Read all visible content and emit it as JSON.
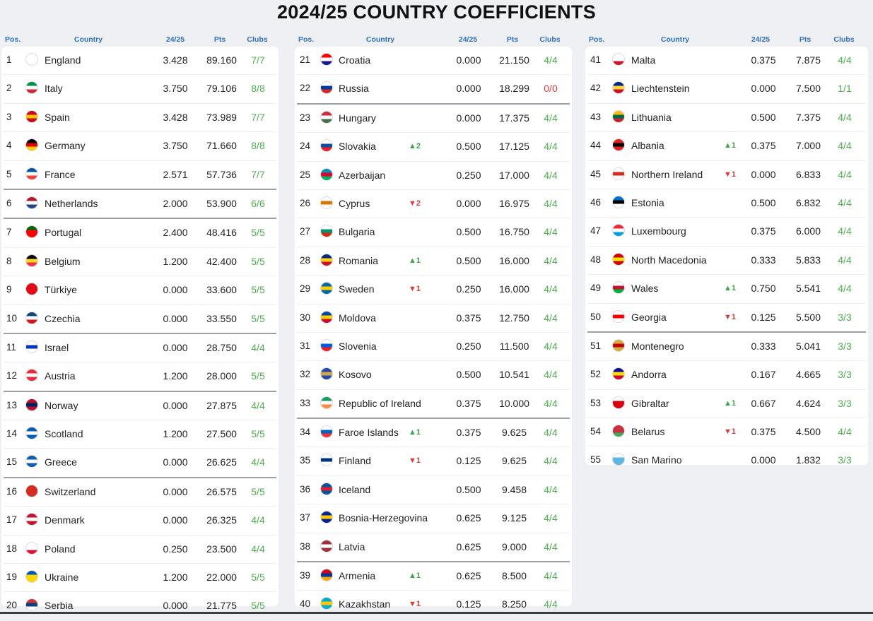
{
  "title": "2024/25 COUNTRY COEFFICIENTS",
  "headers": {
    "pos": "Pos.",
    "country": "Country",
    "season": "24/25",
    "pts": "Pts",
    "clubs": "Clubs"
  },
  "colors": {
    "header_blue": "#2f6fc2",
    "clubs_green": "#4cae4c",
    "clubs_red": "#e03a3a",
    "up_green": "#3aa54a",
    "down_red": "#d63a3a"
  },
  "columns": [
    [
      {
        "pos": "1",
        "country": "England",
        "season": "3.428",
        "pts": "89.160",
        "clubs": "7/7",
        "flag": [
          "#ffffff",
          "#d2232a"
        ],
        "sep": false
      },
      {
        "pos": "2",
        "country": "Italy",
        "season": "3.750",
        "pts": "79.106",
        "clubs": "8/8",
        "flag": [
          "#009246",
          "#ffffff",
          "#ce2b37"
        ],
        "sep": false
      },
      {
        "pos": "3",
        "country": "Spain",
        "season": "3.428",
        "pts": "73.989",
        "clubs": "7/7",
        "flag": [
          "#c60b1e",
          "#ffc400",
          "#c60b1e"
        ],
        "sep": false
      },
      {
        "pos": "4",
        "country": "Germany",
        "season": "3.750",
        "pts": "71.660",
        "clubs": "8/8",
        "flag": [
          "#000000",
          "#dd0000",
          "#ffce00"
        ],
        "sep": false
      },
      {
        "pos": "5",
        "country": "France",
        "season": "2.571",
        "pts": "57.736",
        "clubs": "7/7",
        "flag": [
          "#0055a4",
          "#ffffff",
          "#ef4135"
        ],
        "sep": true
      },
      {
        "pos": "6",
        "country": "Netherlands",
        "season": "2.000",
        "pts": "53.900",
        "clubs": "6/6",
        "flag": [
          "#ae1c28",
          "#ffffff",
          "#21468b"
        ],
        "sep": true
      },
      {
        "pos": "7",
        "country": "Portugal",
        "season": "2.400",
        "pts": "48.416",
        "clubs": "5/5",
        "flag": [
          "#006600",
          "#ff0000",
          "#ff0000"
        ],
        "sep": false
      },
      {
        "pos": "8",
        "country": "Belgium",
        "season": "1.200",
        "pts": "42.400",
        "clubs": "5/5",
        "flag": [
          "#000000",
          "#fdda24",
          "#ef3340"
        ],
        "sep": false
      },
      {
        "pos": "9",
        "country": "Türkiye",
        "season": "0.000",
        "pts": "33.600",
        "clubs": "5/5",
        "flag": [
          "#e30a17",
          "#e30a17",
          "#e30a17"
        ],
        "sep": false
      },
      {
        "pos": "10",
        "country": "Czechia",
        "season": "0.000",
        "pts": "33.550",
        "clubs": "5/5",
        "flag": [
          "#11457e",
          "#ffffff",
          "#d7141a"
        ],
        "sep": true
      },
      {
        "pos": "11",
        "country": "Israel",
        "season": "0.000",
        "pts": "28.750",
        "clubs": "4/4",
        "flag": [
          "#ffffff",
          "#0038b8",
          "#ffffff"
        ],
        "sep": false
      },
      {
        "pos": "12",
        "country": "Austria",
        "season": "1.200",
        "pts": "28.000",
        "clubs": "5/5",
        "flag": [
          "#ed2939",
          "#ffffff",
          "#ed2939"
        ],
        "sep": true
      },
      {
        "pos": "13",
        "country": "Norway",
        "season": "0.000",
        "pts": "27.875",
        "clubs": "4/4",
        "flag": [
          "#ba0c2f",
          "#00205b",
          "#ba0c2f"
        ],
        "sep": false
      },
      {
        "pos": "14",
        "country": "Scotland",
        "season": "1.200",
        "pts": "27.500",
        "clubs": "5/5",
        "flag": [
          "#005eb8",
          "#ffffff",
          "#005eb8"
        ],
        "sep": false
      },
      {
        "pos": "15",
        "country": "Greece",
        "season": "0.000",
        "pts": "26.625",
        "clubs": "4/4",
        "flag": [
          "#0d5eaf",
          "#ffffff",
          "#0d5eaf"
        ],
        "sep": true
      },
      {
        "pos": "16",
        "country": "Switzerland",
        "season": "0.000",
        "pts": "26.575",
        "clubs": "5/5",
        "flag": [
          "#d52b1e",
          "#d52b1e",
          "#d52b1e"
        ],
        "sep": false
      },
      {
        "pos": "17",
        "country": "Denmark",
        "season": "0.000",
        "pts": "26.325",
        "clubs": "4/4",
        "flag": [
          "#c8102e",
          "#ffffff",
          "#c8102e"
        ],
        "sep": false
      },
      {
        "pos": "18",
        "country": "Poland",
        "season": "0.250",
        "pts": "23.500",
        "clubs": "4/4",
        "flag": [
          "#ffffff",
          "#ffffff",
          "#dc143c"
        ],
        "sep": false
      },
      {
        "pos": "19",
        "country": "Ukraine",
        "season": "1.200",
        "pts": "22.000",
        "clubs": "5/5",
        "flag": [
          "#0057b7",
          "#ffd700",
          "#ffd700"
        ],
        "sep": false
      },
      {
        "pos": "20",
        "country": "Serbia",
        "season": "0.000",
        "pts": "21.775",
        "clubs": "5/5",
        "flag": [
          "#c6363c",
          "#0c4076",
          "#ffffff"
        ],
        "sep": false
      }
    ],
    [
      {
        "pos": "21",
        "country": "Croatia",
        "season": "0.000",
        "pts": "21.150",
        "clubs": "4/4",
        "flag": [
          "#ff0000",
          "#ffffff",
          "#171796"
        ],
        "sep": false
      },
      {
        "pos": "22",
        "country": "Russia",
        "season": "0.000",
        "pts": "18.299",
        "clubs": "0/0",
        "flag": [
          "#ffffff",
          "#0039a6",
          "#d52b1e"
        ],
        "sep": true
      },
      {
        "pos": "23",
        "country": "Hungary",
        "season": "0.000",
        "pts": "17.375",
        "clubs": "4/4",
        "flag": [
          "#cd2a3e",
          "#ffffff",
          "#436f4d"
        ],
        "sep": false
      },
      {
        "pos": "24",
        "country": "Slovakia",
        "season": "0.500",
        "pts": "17.125",
        "clubs": "4/4",
        "move": "▲2",
        "dir": "up",
        "flag": [
          "#ffffff",
          "#0b4ea2",
          "#ee1c25"
        ],
        "sep": false
      },
      {
        "pos": "25",
        "country": "Azerbaijan",
        "season": "0.250",
        "pts": "17.000",
        "clubs": "4/4",
        "flag": [
          "#0092bc",
          "#e4002b",
          "#00af66"
        ],
        "sep": false
      },
      {
        "pos": "26",
        "country": "Cyprus",
        "season": "0.000",
        "pts": "16.975",
        "clubs": "4/4",
        "move": "▼2",
        "dir": "down",
        "flag": [
          "#ffffff",
          "#d57800",
          "#ffffff"
        ],
        "sep": false
      },
      {
        "pos": "27",
        "country": "Bulgaria",
        "season": "0.500",
        "pts": "16.750",
        "clubs": "4/4",
        "flag": [
          "#ffffff",
          "#00966e",
          "#d62612"
        ],
        "sep": false
      },
      {
        "pos": "28",
        "country": "Romania",
        "season": "0.500",
        "pts": "16.000",
        "clubs": "4/4",
        "move": "▲1",
        "dir": "up",
        "flag": [
          "#002b7f",
          "#fcd116",
          "#ce1126"
        ],
        "sep": false
      },
      {
        "pos": "29",
        "country": "Sweden",
        "season": "0.250",
        "pts": "16.000",
        "clubs": "4/4",
        "move": "▼1",
        "dir": "down",
        "flag": [
          "#006aa7",
          "#fecc00",
          "#006aa7"
        ],
        "sep": false
      },
      {
        "pos": "30",
        "country": "Moldova",
        "season": "0.375",
        "pts": "12.750",
        "clubs": "4/4",
        "flag": [
          "#0046ae",
          "#ffd200",
          "#cc092f"
        ],
        "sep": false
      },
      {
        "pos": "31",
        "country": "Slovenia",
        "season": "0.250",
        "pts": "11.500",
        "clubs": "4/4",
        "flag": [
          "#ffffff",
          "#005ce5",
          "#ed1c24"
        ],
        "sep": false
      },
      {
        "pos": "32",
        "country": "Kosovo",
        "season": "0.500",
        "pts": "10.541",
        "clubs": "4/4",
        "flag": [
          "#244aa5",
          "#d0a650",
          "#244aa5"
        ],
        "sep": false
      },
      {
        "pos": "33",
        "country": "Republic of Ireland",
        "season": "0.375",
        "pts": "10.000",
        "clubs": "4/4",
        "flag": [
          "#169b62",
          "#ffffff",
          "#ff883e"
        ],
        "sep": true
      },
      {
        "pos": "34",
        "country": "Faroe Islands",
        "season": "0.375",
        "pts": "9.625",
        "clubs": "4/4",
        "move": "▲1",
        "dir": "up",
        "flag": [
          "#ffffff",
          "#0065bd",
          "#ef303e"
        ],
        "sep": false
      },
      {
        "pos": "35",
        "country": "Finland",
        "season": "0.125",
        "pts": "9.625",
        "clubs": "4/4",
        "move": "▼1",
        "dir": "down",
        "flag": [
          "#ffffff",
          "#003580",
          "#ffffff"
        ],
        "sep": false
      },
      {
        "pos": "36",
        "country": "Iceland",
        "season": "0.500",
        "pts": "9.458",
        "clubs": "4/4",
        "flag": [
          "#02529c",
          "#dc1e35",
          "#02529c"
        ],
        "sep": false
      },
      {
        "pos": "37",
        "country": "Bosnia-Herzegovina",
        "season": "0.625",
        "pts": "9.125",
        "clubs": "4/4",
        "flag": [
          "#002395",
          "#fecb00",
          "#002395"
        ],
        "sep": false
      },
      {
        "pos": "38",
        "country": "Latvia",
        "season": "0.625",
        "pts": "9.000",
        "clubs": "4/4",
        "flag": [
          "#9e3039",
          "#ffffff",
          "#9e3039"
        ],
        "sep": true
      },
      {
        "pos": "39",
        "country": "Armenia",
        "season": "0.625",
        "pts": "8.500",
        "clubs": "4/4",
        "move": "▲1",
        "dir": "up",
        "flag": [
          "#d90012",
          "#0033a0",
          "#f2a800"
        ],
        "sep": false
      },
      {
        "pos": "40",
        "country": "Kazakhstan",
        "season": "0.125",
        "pts": "8.250",
        "clubs": "4/4",
        "move": "▼1",
        "dir": "down",
        "flag": [
          "#00afca",
          "#fec50c",
          "#00afca"
        ],
        "sep": false
      }
    ],
    [
      {
        "pos": "41",
        "country": "Malta",
        "season": "0.375",
        "pts": "7.875",
        "clubs": "4/4",
        "flag": [
          "#ffffff",
          "#ffffff",
          "#cf142b"
        ],
        "sep": false
      },
      {
        "pos": "42",
        "country": "Liechtenstein",
        "season": "0.000",
        "pts": "7.500",
        "clubs": "1/1",
        "flag": [
          "#002b7f",
          "#ffd83d",
          "#ce1126"
        ],
        "sep": false
      },
      {
        "pos": "43",
        "country": "Lithuania",
        "season": "0.500",
        "pts": "7.375",
        "clubs": "4/4",
        "flag": [
          "#fdb913",
          "#006a44",
          "#c1272d"
        ],
        "sep": false
      },
      {
        "pos": "44",
        "country": "Albania",
        "season": "0.375",
        "pts": "7.000",
        "clubs": "4/4",
        "move": "▲1",
        "dir": "up",
        "flag": [
          "#e41e20",
          "#000000",
          "#e41e20"
        ],
        "sep": false
      },
      {
        "pos": "45",
        "country": "Northern Ireland",
        "season": "0.000",
        "pts": "6.833",
        "clubs": "4/4",
        "move": "▼1",
        "dir": "down",
        "flag": [
          "#ffffff",
          "#d52b1e",
          "#ffffff"
        ],
        "sep": false
      },
      {
        "pos": "46",
        "country": "Estonia",
        "season": "0.500",
        "pts": "6.832",
        "clubs": "4/4",
        "flag": [
          "#0072ce",
          "#000000",
          "#ffffff"
        ],
        "sep": false
      },
      {
        "pos": "47",
        "country": "Luxembourg",
        "season": "0.375",
        "pts": "6.000",
        "clubs": "4/4",
        "flag": [
          "#ed2939",
          "#ffffff",
          "#00a1de"
        ],
        "sep": false
      },
      {
        "pos": "48",
        "country": "North Macedonia",
        "season": "0.333",
        "pts": "5.833",
        "clubs": "4/4",
        "flag": [
          "#d20000",
          "#ffe600",
          "#d20000"
        ],
        "sep": false
      },
      {
        "pos": "49",
        "country": "Wales",
        "season": "0.750",
        "pts": "5.541",
        "clubs": "4/4",
        "move": "▲1",
        "dir": "up",
        "flag": [
          "#ffffff",
          "#c8102e",
          "#00b140"
        ],
        "sep": false
      },
      {
        "pos": "50",
        "country": "Georgia",
        "season": "0.125",
        "pts": "5.500",
        "clubs": "3/3",
        "move": "▼1",
        "dir": "down",
        "flag": [
          "#ffffff",
          "#ff0000",
          "#ffffff"
        ],
        "sep": true
      },
      {
        "pos": "51",
        "country": "Montenegro",
        "season": "0.333",
        "pts": "5.041",
        "clubs": "3/3",
        "flag": [
          "#d3ae3b",
          "#c40308",
          "#d3ae3b"
        ],
        "sep": false
      },
      {
        "pos": "52",
        "country": "Andorra",
        "season": "0.167",
        "pts": "4.665",
        "clubs": "3/3",
        "flag": [
          "#10069f",
          "#fedf00",
          "#d50032"
        ],
        "sep": false
      },
      {
        "pos": "53",
        "country": "Gibraltar",
        "season": "0.667",
        "pts": "4.624",
        "clubs": "3/3",
        "move": "▲1",
        "dir": "up",
        "flag": [
          "#ffffff",
          "#da000c",
          "#da000c"
        ],
        "sep": false
      },
      {
        "pos": "54",
        "country": "Belarus",
        "season": "0.375",
        "pts": "4.500",
        "clubs": "4/4",
        "move": "▼1",
        "dir": "down",
        "flag": [
          "#c8313e",
          "#c8313e",
          "#4aa657"
        ],
        "sep": false
      },
      {
        "pos": "55",
        "country": "San Marino",
        "season": "0.000",
        "pts": "1.832",
        "clubs": "3/3",
        "flag": [
          "#ffffff",
          "#5eb6e4",
          "#5eb6e4"
        ],
        "sep": false
      }
    ]
  ]
}
